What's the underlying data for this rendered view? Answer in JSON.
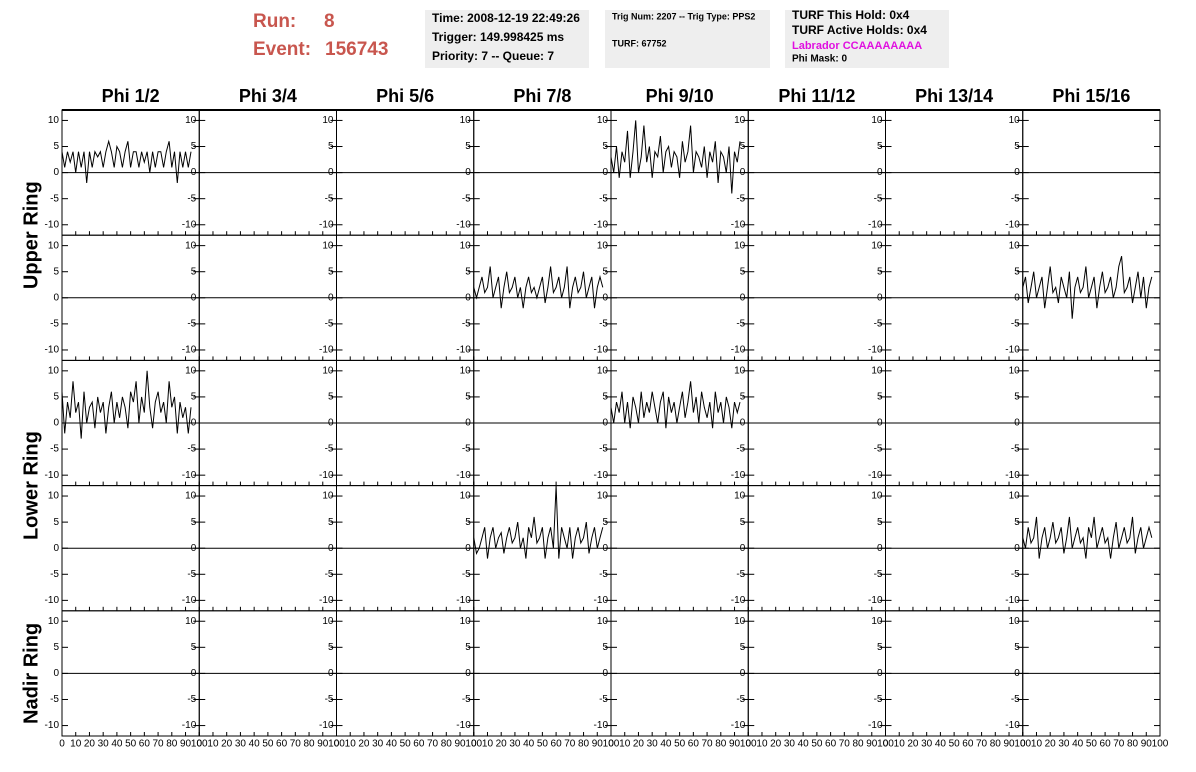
{
  "header": {
    "run_label": "Run:",
    "run": 8,
    "event_label": "Event:",
    "event": 156743,
    "info": [
      [
        "Time: 2008-12-19 22:49:26",
        "Trigger: 149.998425 ms",
        "Priority: 7 -- Queue: 7"
      ],
      [
        "Trig Num: 2207 -- Trig Type: PPS2",
        "TURF: 67752"
      ],
      [
        "TURF This Hold: 0x4",
        "TURF Active Holds: 0x4",
        "Labrador CCAAAAAAAA",
        "Phi Mask: 0"
      ]
    ]
  },
  "columns": [
    "Phi 1/2",
    "Phi 3/4",
    "Phi 5/6",
    "Phi 7/8",
    "Phi 9/10",
    "Phi 11/12",
    "Phi 13/14",
    "Phi 15/16"
  ],
  "axes": {
    "xlim": [
      0,
      100
    ],
    "xticks": [
      0,
      10,
      20,
      30,
      40,
      50,
      60,
      70,
      80,
      90,
      100
    ],
    "ylim": [
      -12,
      12
    ],
    "yticks": [
      -10,
      -5,
      0,
      5,
      10
    ]
  },
  "x": [
    0,
    2,
    4,
    6,
    8,
    10,
    12,
    14,
    16,
    18,
    20,
    22,
    24,
    26,
    28,
    30,
    32,
    34,
    36,
    38,
    40,
    42,
    44,
    46,
    48,
    50,
    52,
    54,
    56,
    58,
    60,
    62,
    64,
    66,
    68,
    70,
    72,
    74,
    76,
    78,
    80,
    82,
    84,
    86,
    88,
    90,
    92,
    94
  ],
  "rings": [
    {
      "label": "Upper Ring",
      "rows": [
        [
          [
            4,
            1,
            4,
            2,
            4,
            0,
            4,
            1,
            4,
            -2,
            4,
            1,
            4,
            3,
            4,
            1,
            4,
            6,
            4,
            1,
            5,
            4,
            1,
            4,
            6,
            1,
            4,
            4,
            1,
            4,
            2,
            4,
            0,
            4,
            1,
            4,
            4,
            1,
            4,
            6,
            1,
            4,
            -2,
            4,
            1,
            4,
            1,
            4
          ],
          null,
          null,
          null,
          [
            3,
            0,
            5,
            -1,
            4,
            2,
            8,
            -1,
            4,
            10,
            0,
            3,
            9,
            2,
            5,
            -1,
            4,
            3,
            7,
            0,
            4,
            5,
            1,
            4,
            3,
            -1,
            6,
            2,
            4,
            9,
            0,
            4,
            3,
            1,
            5,
            -1,
            4,
            2,
            6,
            -2,
            4,
            3,
            0,
            5,
            -4,
            4,
            2,
            6
          ],
          null,
          null,
          null
        ],
        [
          null,
          null,
          null,
          [
            2,
            0,
            2,
            4,
            1,
            2,
            6,
            0,
            2,
            4,
            -2,
            2,
            5,
            1,
            2,
            4,
            0,
            2,
            -2,
            2,
            4,
            1,
            2,
            0,
            2,
            4,
            -1,
            2,
            6,
            1,
            2,
            4,
            0,
            2,
            6,
            -2,
            2,
            4,
            1,
            2,
            5,
            0,
            2,
            4,
            -2,
            2,
            4,
            2
          ],
          null,
          null,
          null,
          [
            2,
            4,
            -1,
            2,
            5,
            0,
            2,
            4,
            -2,
            2,
            6,
            1,
            2,
            -1,
            4,
            2,
            0,
            5,
            -4,
            2,
            4,
            1,
            2,
            6,
            0,
            2,
            4,
            -2,
            2,
            5,
            1,
            2,
            4,
            0,
            2,
            6,
            8,
            1,
            2,
            4,
            -1,
            2,
            5,
            0,
            4,
            -2,
            2,
            4
          ]
        ]
      ]
    },
    {
      "label": "Lower Ring",
      "rows": [
        [
          [
            6,
            -2,
            4,
            1,
            8,
            2,
            4,
            -3,
            6,
            0,
            3,
            4,
            -1,
            5,
            2,
            4,
            -2,
            3,
            6,
            0,
            4,
            1,
            5,
            3,
            -1,
            6,
            4,
            8,
            0,
            5,
            2,
            10,
            3,
            -1,
            4,
            6,
            2,
            4,
            0,
            8,
            3,
            5,
            -2,
            4,
            1,
            3,
            -2,
            3
          ],
          null,
          null,
          null,
          [
            3,
            0,
            4,
            2,
            6,
            0,
            4,
            -1,
            5,
            3,
            0,
            6,
            1,
            4,
            2,
            6,
            3,
            0,
            4,
            6,
            -1,
            5,
            2,
            4,
            0,
            3,
            6,
            1,
            4,
            8,
            2,
            5,
            0,
            6,
            3,
            1,
            4,
            -1,
            6,
            2,
            4,
            0,
            5,
            3,
            -1,
            4,
            2,
            4
          ],
          null,
          null,
          null
        ],
        [
          null,
          null,
          null,
          [
            2,
            -1,
            0,
            2,
            4,
            -2,
            2,
            4,
            0,
            2,
            3,
            -1,
            2,
            4,
            1,
            2,
            5,
            0,
            2,
            -2,
            4,
            2,
            6,
            1,
            2,
            4,
            -2,
            2,
            4,
            0,
            12,
            -2,
            4,
            2,
            0,
            4,
            -2,
            2,
            4,
            1,
            2,
            5,
            -1,
            2,
            4,
            0,
            2,
            4
          ],
          null,
          null,
          null,
          [
            2,
            0,
            4,
            1,
            2,
            6,
            -2,
            2,
            4,
            0,
            2,
            5,
            1,
            2,
            4,
            -1,
            2,
            6,
            0,
            2,
            4,
            1,
            2,
            -2,
            4,
            2,
            6,
            0,
            2,
            4,
            1,
            2,
            -2,
            2,
            5,
            0,
            2,
            4,
            1,
            2,
            6,
            -1,
            2,
            4,
            0,
            2,
            4,
            2
          ]
        ]
      ]
    },
    {
      "label": "Nadir Ring",
      "rows": [
        [
          null,
          null,
          null,
          null,
          null,
          null,
          null,
          null
        ]
      ]
    }
  ]
}
